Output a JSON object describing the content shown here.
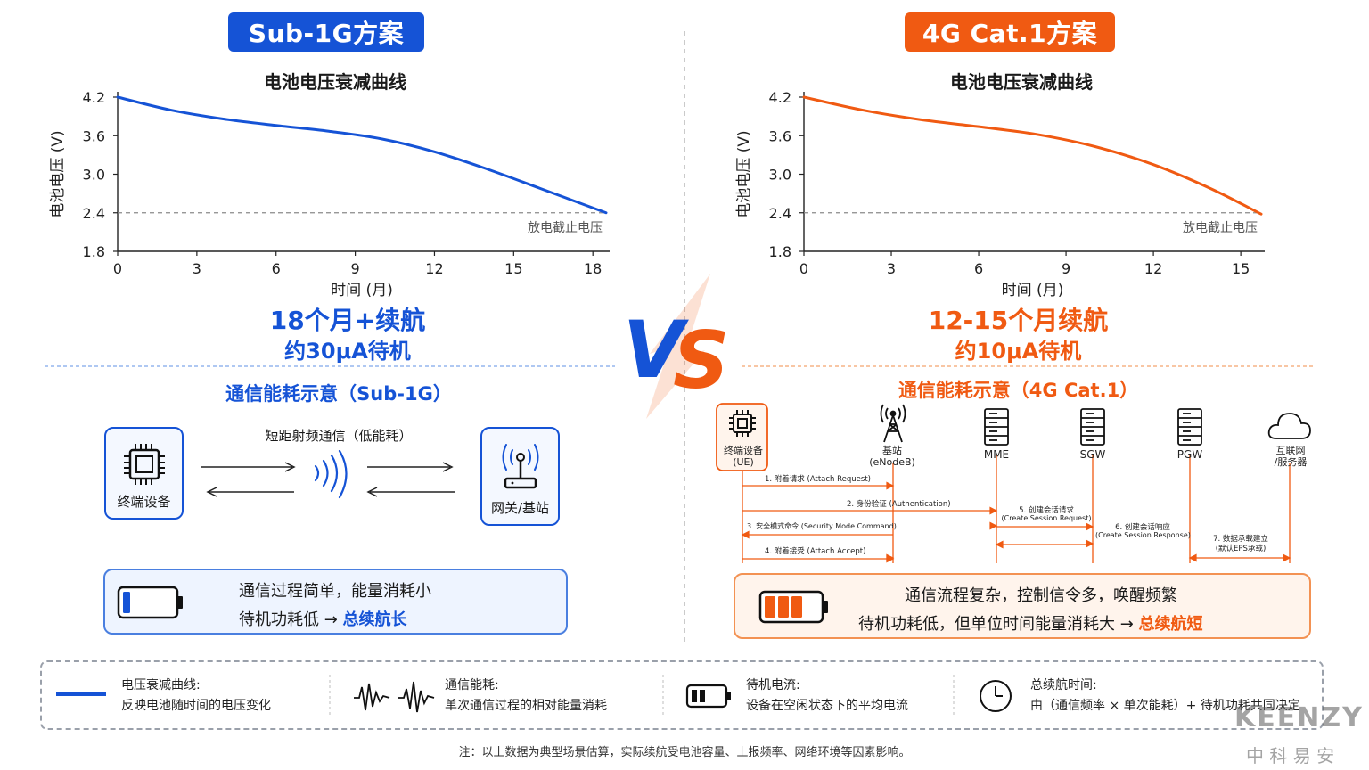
{
  "left": {
    "badge": "Sub-1G方案",
    "chart_title": "电池电压衰减曲线",
    "ylabel": "电池电压 (V)",
    "xlabel": "时间 (月)",
    "cutoff_label": "放电截止电压",
    "headline": "18个月+续航",
    "subline": "约30μA待机",
    "section_title": "通信能耗示意（Sub-1G）",
    "device_label": "终端设备",
    "gateway_label": "网关/基站",
    "link_label": "短距射频通信（低能耗）",
    "note_line1": "通信过程简单，能量消耗小",
    "note_line2_prefix": "待机功耗低 →",
    "note_line2_highlight": "总续航长",
    "battery_level": 0.15
  },
  "right": {
    "badge": "4G Cat.1方案",
    "chart_title": "电池电压衰减曲线",
    "ylabel": "电池电压 (V)",
    "xlabel": "时间 (月)",
    "cutoff_label": "放电截止电压",
    "headline": "12-15个月续航",
    "subline": "约10μA待机",
    "section_title": "通信能耗示意（4G Cat.1）",
    "nodes": [
      {
        "name": "终端设备",
        "sub": "(UE)",
        "icon": "chip-icon"
      },
      {
        "name": "基站",
        "sub": "(eNodeB)",
        "icon": "tower-icon"
      },
      {
        "name": "MME",
        "sub": "",
        "icon": "server-icon"
      },
      {
        "name": "SGW",
        "sub": "",
        "icon": "server-icon"
      },
      {
        "name": "PGW",
        "sub": "",
        "icon": "server-icon"
      },
      {
        "name": "互联网",
        "sub": "/服务器",
        "icon": "cloud-icon"
      }
    ],
    "messages": [
      "1. 附着请求 (Attach Request)",
      "2. 身份验证 (Authentication)",
      "3. 安全模式命令 (Security Mode Command)",
      "4. 附着接受 (Attach Accept)",
      "5. 创建会话请求",
      "(Create Session Request)",
      "6. 创建会话响应",
      "(Create Session Response)",
      "7. 数据承载建立",
      "(默认EPS承载)"
    ],
    "note_line1": "通信流程复杂，控制信令多，唤醒频繁",
    "note_line2_prefix": "待机功耗低，但单位时间能量消耗大 →",
    "note_line2_highlight": "总续航短",
    "battery_level": 0.75
  },
  "vs_label": "VS",
  "legend": [
    {
      "title": "电压衰减曲线:",
      "desc": "反映电池随时间的电压变化",
      "icon": "line-icon"
    },
    {
      "title": "通信能耗:",
      "desc": "单次通信过程的相对能量消耗",
      "icon": "waveform-icon"
    },
    {
      "title": "待机电流:",
      "desc": "设备在空闲状态下的平均电流",
      "icon": "battery-icon"
    },
    {
      "title": "总续航时间:",
      "desc": "由（通信频率 × 单次能耗）+ 待机功耗共同决定",
      "icon": "clock-icon"
    }
  ],
  "footnote": "注：以上数据为典型场景估算，实际续航受电池容量、上报频率、网络环境等因素影响。",
  "watermark": {
    "brand": "KEENZY",
    "cn": "中 科 易 安"
  },
  "colors": {
    "blue": "#1553d6",
    "orange": "#f05a12"
  },
  "chart_data": [
    {
      "type": "line",
      "title": "电池电压衰减曲线",
      "xlabel": "时间 (月)",
      "ylabel": "电池电压 (V)",
      "xticks": [
        0,
        3,
        6,
        9,
        12,
        15,
        18
      ],
      "yticks": [
        1.8,
        2.4,
        3.0,
        3.6,
        4.2
      ],
      "xlim": [
        0,
        18.5
      ],
      "ylim": [
        1.8,
        4.2
      ],
      "cutoff": 2.4,
      "series": [
        {
          "x": [
            0,
            2,
            4,
            6,
            8,
            10,
            12,
            14,
            16,
            18.5
          ],
          "y": [
            4.2,
            4.0,
            3.86,
            3.76,
            3.67,
            3.55,
            3.35,
            3.08,
            2.78,
            2.4
          ]
        }
      ]
    },
    {
      "type": "line",
      "title": "电池电压衰减曲线",
      "xlabel": "时间 (月)",
      "ylabel": "电池电压 (V)",
      "xticks": [
        0,
        3,
        6,
        9,
        12,
        15
      ],
      "yticks": [
        1.8,
        2.4,
        3.0,
        3.6,
        4.2
      ],
      "xlim": [
        0,
        15.7
      ],
      "ylim": [
        1.8,
        4.2
      ],
      "cutoff": 2.4,
      "series": [
        {
          "x": [
            0,
            2,
            4,
            6,
            8,
            10,
            12,
            14,
            15.7
          ],
          "y": [
            4.2,
            4.0,
            3.85,
            3.74,
            3.62,
            3.43,
            3.15,
            2.77,
            2.38
          ]
        }
      ]
    }
  ]
}
